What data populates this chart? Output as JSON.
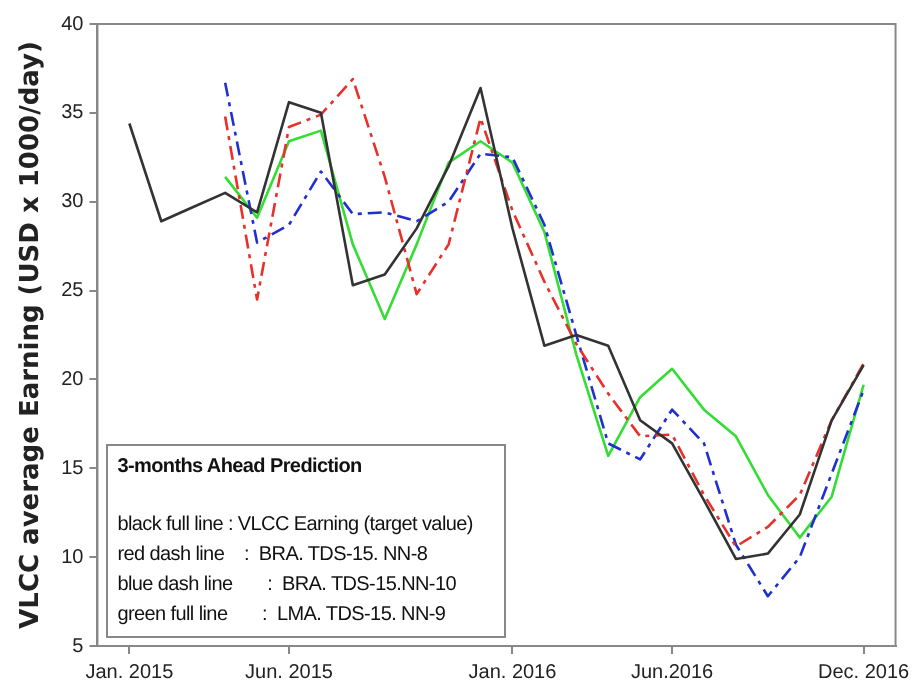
{
  "chart_data": {
    "type": "line",
    "ylabel": "VLCC average Earning (USD x 1000/day)",
    "x": [
      "2015-01",
      "2015-02",
      "2015-03",
      "2015-04",
      "2015-05",
      "2015-06",
      "2015-07",
      "2015-08",
      "2015-09",
      "2015-10",
      "2015-11",
      "2015-12",
      "2016-01",
      "2016-02",
      "2016-03",
      "2016-04",
      "2016-05",
      "2016-06",
      "2016-07",
      "2016-08",
      "2016-09",
      "2016-10",
      "2016-11",
      "2016-12"
    ],
    "series": [
      {
        "color": "#333333",
        "line_style": "solid",
        "values": [
          34.4,
          28.9,
          29.7,
          30.5,
          29.4,
          35.6,
          35.0,
          25.3,
          25.9,
          28.5,
          32.0,
          36.4,
          28.5,
          21.9,
          22.5,
          21.9,
          17.7,
          16.4,
          13.2,
          9.9,
          10.2,
          12.4,
          17.7,
          20.8
        ]
      },
      {
        "color": "#e8302a",
        "line_style": "dashed",
        "values": [
          null,
          null,
          null,
          34.8,
          24.5,
          34.2,
          34.9,
          36.9,
          31.4,
          24.8,
          27.6,
          34.7,
          29.5,
          25.5,
          22.0,
          19.2,
          16.8,
          16.9,
          13.5,
          10.6,
          11.7,
          13.5,
          17.7,
          20.9
        ]
      },
      {
        "color": "#1f2fd0",
        "line_style": "dashed",
        "values": [
          null,
          null,
          null,
          36.7,
          27.7,
          28.7,
          31.7,
          29.3,
          29.4,
          28.9,
          30.0,
          32.7,
          32.5,
          28.7,
          22.5,
          16.4,
          15.5,
          18.3,
          16.4,
          10.7,
          7.8,
          10.0,
          14.7,
          19.4
        ]
      },
      {
        "color": "#33dd33",
        "line_style": "solid",
        "values": [
          null,
          null,
          null,
          31.4,
          29.1,
          33.4,
          34.0,
          27.6,
          23.4,
          27.6,
          32.2,
          33.4,
          32.2,
          28.3,
          21.4,
          15.7,
          19.0,
          20.6,
          18.3,
          16.8,
          13.5,
          11.1,
          13.4,
          19.7
        ]
      }
    ],
    "xlim": [
      "2014-12",
      "2017-01"
    ],
    "xticks": [
      {
        "value": "2015-01",
        "label": "Jan. 2015"
      },
      {
        "value": "2015-06",
        "label": "Jun. 2015"
      },
      {
        "value": "2016-01",
        "label": "Jan. 2016"
      },
      {
        "value": "2016-06",
        "label": "Jun.2016"
      },
      {
        "value": "2016-12",
        "label": "Dec. 2016"
      }
    ],
    "ylim": [
      5,
      40
    ],
    "yticks": [
      5,
      10,
      15,
      20,
      25,
      30,
      35,
      40
    ],
    "grid": false,
    "legend": false,
    "marker": "none",
    "annotations": [
      "3-months Ahead Prediction",
      "black full line : VLCC Earning (target value)",
      "red dash line    :  BRA. TDS-15. NN-8",
      "blue dash line       :  BRA. TDS-15.NN-10",
      "green full line       :  LMA. TDS-15. NN-9"
    ]
  }
}
